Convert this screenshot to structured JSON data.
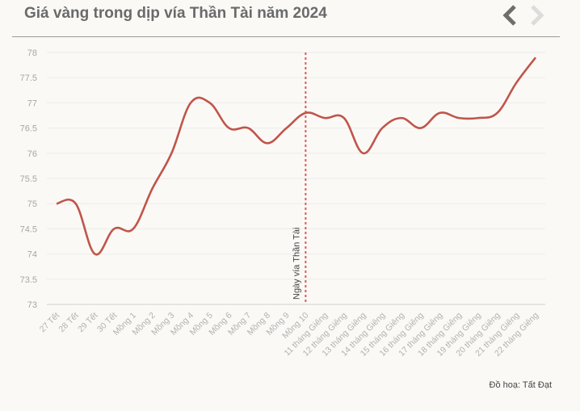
{
  "header": {
    "title": "Giá vàng trong dịp vía Thần Tài năm 2024",
    "prev_icon": "chevron-left-icon",
    "next_icon": "chevron-right-icon"
  },
  "credit": "Đồ hoạ: Tất Đạt",
  "chart_data": {
    "type": "line",
    "title": "Giá vàng trong dịp vía Thần Tài năm 2024",
    "xlabel": "",
    "ylabel": "",
    "categories": [
      "27 Tết",
      "28 Tết",
      "29 Tết",
      "30 Tết",
      "Mồng 1",
      "Mồng 2",
      "Mồng 3",
      "Mồng 4",
      "Mồng 5",
      "Mồng 6",
      "Mồng 7",
      "Mồng 8",
      "Mồng 9",
      "Mồng 10",
      "11 tháng Giêng",
      "12 tháng Giêng",
      "13 tháng Giêng",
      "14 tháng Giêng",
      "15 tháng Giêng",
      "16 tháng Giêng",
      "17 tháng Giêng",
      "18 tháng Giêng",
      "19 tháng Giêng",
      "20 tháng Giêng",
      "21 tháng Giêng",
      "22 tháng Giêng"
    ],
    "series": [
      {
        "values": [
          75.0,
          75.0,
          74.0,
          74.5,
          74.5,
          75.3,
          76.0,
          77.0,
          77.0,
          76.5,
          76.5,
          76.2,
          76.5,
          76.8,
          76.7,
          76.7,
          76.0,
          76.5,
          76.7,
          76.5,
          76.8,
          76.7,
          76.7,
          76.8,
          77.4,
          77.9
        ],
        "color": "#c0554a"
      }
    ],
    "ylim": [
      73,
      78
    ],
    "yticks": [
      73,
      73.5,
      74,
      74.5,
      75,
      75.5,
      76,
      76.5,
      77,
      77.5,
      78
    ],
    "grid": true,
    "annotation": {
      "label": "Ngày vía Thần Tài",
      "category_index": 13,
      "color": "#e05a5a"
    }
  }
}
